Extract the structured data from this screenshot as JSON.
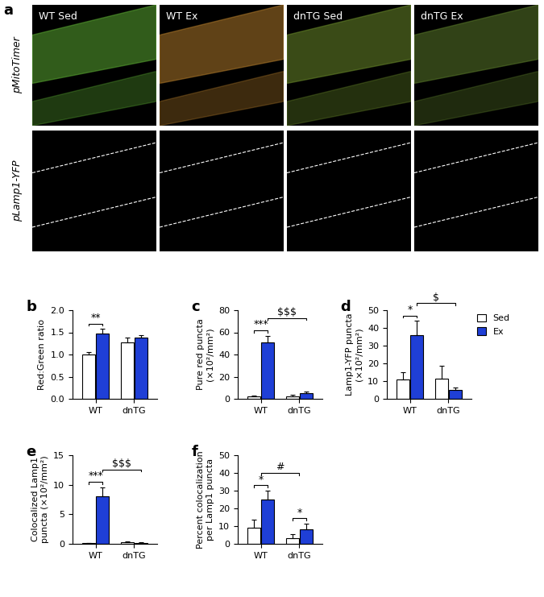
{
  "panel_a": {
    "label": "a",
    "columns": [
      "WT Sed",
      "WT Ex",
      "dnTG Sed",
      "dnTG Ex"
    ],
    "rows": [
      "pMitoTimer",
      "pLamp1-YFP"
    ]
  },
  "chart_data": [
    {
      "type": "bar",
      "panel_label": "b",
      "y_label": "Red:Green ratio",
      "categories": [
        "WT",
        "dnTG"
      ],
      "series": [
        {
          "name": "Sed",
          "color": "#ffffff",
          "values": [
            1.0,
            1.28
          ],
          "errors": [
            0.05,
            0.1
          ]
        },
        {
          "name": "Ex",
          "color": "#1f3fd6",
          "values": [
            1.48,
            1.38
          ],
          "errors": [
            0.1,
            0.06
          ]
        }
      ],
      "ylim": [
        0,
        2
      ],
      "yticks": [
        {
          "value": 0,
          "label": "0.0"
        },
        {
          "value": 0.5,
          "label": "0.5"
        },
        {
          "value": 1,
          "label": "1.0"
        },
        {
          "value": 1.5,
          "label": "1.5"
        },
        {
          "value": 2,
          "label": "2.0"
        }
      ],
      "annotations": [
        {
          "text": "**",
          "from": [
            "WT",
            "Sed"
          ],
          "to": [
            "WT",
            "Ex"
          ]
        }
      ]
    },
    {
      "type": "bar",
      "panel_label": "c",
      "y_label": "Pure red puncta\n(×10²/mm²)",
      "categories": [
        "WT",
        "dnTG"
      ],
      "series": [
        {
          "name": "Sed",
          "color": "#ffffff",
          "values": [
            2,
            2.5
          ],
          "errors": [
            1,
            1
          ]
        },
        {
          "name": "Ex",
          "color": "#1f3fd6",
          "values": [
            51,
            5
          ],
          "errors": [
            6,
            1.5
          ]
        }
      ],
      "ylim": [
        0,
        80
      ],
      "yticks": [
        0,
        20,
        40,
        60,
        80
      ],
      "annotations": [
        {
          "text": "***",
          "from": [
            "WT",
            "Sed"
          ],
          "to": [
            "WT",
            "Ex"
          ]
        },
        {
          "text": "$$$",
          "from": [
            "WT",
            "Ex"
          ],
          "to": [
            "dnTG",
            "Ex"
          ]
        }
      ]
    },
    {
      "type": "bar",
      "panel_label": "d",
      "y_label": "Lamp1-YFP puncta\n(×10²/mm²)",
      "categories": [
        "WT",
        "dnTG"
      ],
      "series": [
        {
          "name": "Sed",
          "color": "#ffffff",
          "values": [
            11,
            11.5
          ],
          "errors": [
            4,
            7
          ]
        },
        {
          "name": "Ex",
          "color": "#1f3fd6",
          "values": [
            36,
            5
          ],
          "errors": [
            8,
            1.5
          ]
        }
      ],
      "ylim": [
        0,
        50
      ],
      "yticks": [
        0,
        10,
        20,
        30,
        40,
        50
      ],
      "legend": "upper right",
      "annotations": [
        {
          "text": "*",
          "from": [
            "WT",
            "Sed"
          ],
          "to": [
            "WT",
            "Ex"
          ]
        },
        {
          "text": "$",
          "from": [
            "WT",
            "Ex"
          ],
          "to": [
            "dnTG",
            "Ex"
          ]
        }
      ]
    },
    {
      "type": "bar",
      "panel_label": "e",
      "y_label": "Colocalized Lamp1\npuncta (×10²/mm²)",
      "categories": [
        "WT",
        "dnTG"
      ],
      "series": [
        {
          "name": "Sed",
          "color": "#ffffff",
          "values": [
            0.15,
            0.25
          ],
          "errors": [
            0.05,
            0.1
          ]
        },
        {
          "name": "Ex",
          "color": "#1f3fd6",
          "values": [
            8,
            0.2
          ],
          "errors": [
            1.6,
            0.05
          ]
        }
      ],
      "ylim": [
        0,
        15
      ],
      "yticks": [
        0,
        5,
        10,
        15
      ],
      "annotations": [
        {
          "text": "***",
          "from": [
            "WT",
            "Sed"
          ],
          "to": [
            "WT",
            "Ex"
          ]
        },
        {
          "text": "$$$",
          "from": [
            "WT",
            "Ex"
          ],
          "to": [
            "dnTG",
            "Ex"
          ]
        }
      ]
    },
    {
      "type": "bar",
      "panel_label": "f",
      "y_label": "Percent colocalization\nper Lamp1 puncta",
      "categories": [
        "WT",
        "dnTG"
      ],
      "series": [
        {
          "name": "Sed",
          "color": "#ffffff",
          "values": [
            9,
            3
          ],
          "errors": [
            4.5,
            2.5
          ]
        },
        {
          "name": "Ex",
          "color": "#1f3fd6",
          "values": [
            25,
            8
          ],
          "errors": [
            5,
            3.5
          ]
        }
      ],
      "ylim": [
        0,
        50
      ],
      "yticks": [
        0,
        10,
        20,
        30,
        40,
        50
      ],
      "annotations": [
        {
          "text": "*",
          "from": [
            "WT",
            "Sed"
          ],
          "to": [
            "WT",
            "Ex"
          ]
        },
        {
          "text": "*",
          "from": [
            "dnTG",
            "Sed"
          ],
          "to": [
            "dnTG",
            "Ex"
          ]
        },
        {
          "text": "#",
          "from": [
            "WT"
          ],
          "to": [
            "dnTG"
          ]
        }
      ]
    }
  ]
}
